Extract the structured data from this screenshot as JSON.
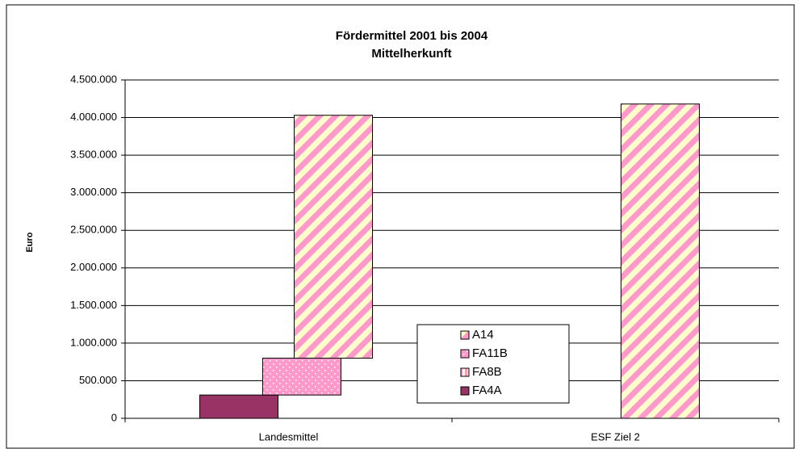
{
  "chart_data": {
    "type": "stacked-offset-bar",
    "title": [
      "Fördermittel 2001 bis 2004",
      "Mittelherkunft"
    ],
    "y_label": "Euro",
    "categories": [
      "Landesmittel",
      "ESF Ziel 2"
    ],
    "series": [
      {
        "name": "FA4A",
        "color": "#993366",
        "pattern": "solid",
        "values": [
          310000,
          0
        ]
      },
      {
        "name": "FA8B",
        "color": "#ff99cc",
        "pattern": "vertical",
        "values": [
          0,
          0
        ]
      },
      {
        "name": "FA11B",
        "color": "#ff99cc",
        "pattern": "dots",
        "values": [
          490000,
          0
        ]
      },
      {
        "name": "A14",
        "color": "#ff99cc",
        "pattern": "diagonal",
        "values": [
          3230000,
          4180000
        ]
      }
    ],
    "ylim": [
      0,
      4500000
    ],
    "yticks": [
      0,
      {
        "value": 500000,
        "label": "500.000"
      },
      {
        "value": 1000000,
        "label": "1.000.000"
      },
      {
        "value": 1500000,
        "label": "1.500.000"
      },
      {
        "value": 2000000,
        "label": "2.000.000"
      },
      {
        "value": 2500000,
        "label": "2.500.000"
      },
      {
        "value": 3000000,
        "label": "3.000.000"
      },
      {
        "value": 3500000,
        "label": "3.500.000"
      },
      {
        "value": 4000000,
        "label": "4.000.000"
      },
      {
        "value": 4500000,
        "label": "4.500.000"
      }
    ],
    "grid": true,
    "legend": "center"
  }
}
